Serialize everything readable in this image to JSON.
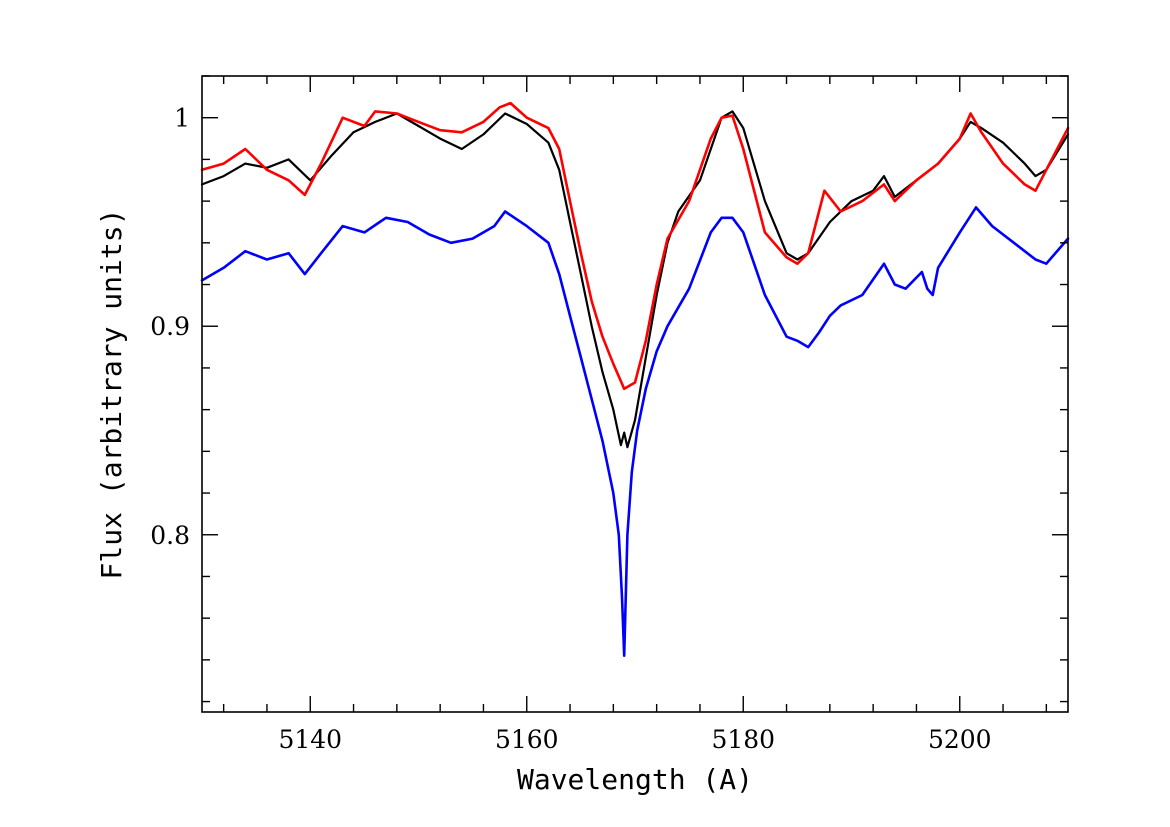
{
  "chart_data": {
    "type": "line",
    "title": "",
    "xlabel": "Wavelength (A)",
    "ylabel": "Flux (arbitrary units)",
    "xlim": [
      5130,
      5210
    ],
    "ylim": [
      0.715,
      1.02
    ],
    "grid": false,
    "legend": "none",
    "x_ticks": [
      5140,
      5160,
      5180,
      5200
    ],
    "x_tick_labels": [
      "5140",
      "5160",
      "5180",
      "5200"
    ],
    "y_ticks": [
      0.8,
      0.9,
      1.0
    ],
    "y_tick_labels": [
      "0.8",
      "0.9",
      "1"
    ],
    "x_minor_step": 4,
    "y_minor_step": 0.02,
    "series": [
      {
        "color": "#000000",
        "x": [
          5130,
          5132,
          5134,
          5136,
          5138,
          5140,
          5142,
          5144,
          5146,
          5148,
          5150,
          5152,
          5154,
          5156,
          5158,
          5160,
          5162,
          5163,
          5164,
          5165,
          5166,
          5167,
          5168,
          5168.7,
          5169,
          5169.3,
          5170,
          5171,
          5172,
          5173,
          5174,
          5176,
          5178,
          5179,
          5180,
          5182,
          5184,
          5185,
          5186,
          5188,
          5190,
          5192,
          5193,
          5194,
          5196,
          5198,
          5200,
          5201,
          5202,
          5204,
          5206,
          5207,
          5208,
          5210
        ],
        "y": [
          0.968,
          0.972,
          0.978,
          0.976,
          0.98,
          0.97,
          0.982,
          0.993,
          0.998,
          1.002,
          0.996,
          0.99,
          0.985,
          0.992,
          1.002,
          0.997,
          0.988,
          0.975,
          0.95,
          0.925,
          0.9,
          0.878,
          0.86,
          0.843,
          0.849,
          0.842,
          0.855,
          0.885,
          0.915,
          0.94,
          0.955,
          0.97,
          1.0,
          1.003,
          0.995,
          0.96,
          0.935,
          0.932,
          0.935,
          0.95,
          0.96,
          0.965,
          0.972,
          0.962,
          0.97,
          0.978,
          0.99,
          0.998,
          0.995,
          0.988,
          0.978,
          0.972,
          0.975,
          0.992
        ]
      },
      {
        "color": "#ff0000",
        "x": [
          5130,
          5132,
          5134,
          5136,
          5138,
          5139.5,
          5141,
          5143,
          5145,
          5146,
          5148,
          5150,
          5152,
          5154,
          5156,
          5157.5,
          5158.5,
          5160,
          5162,
          5163,
          5164,
          5165,
          5166,
          5167,
          5168,
          5169,
          5170,
          5171,
          5172,
          5173,
          5175,
          5177,
          5178,
          5179,
          5180,
          5182,
          5184,
          5185,
          5186,
          5187,
          5187.5,
          5189,
          5191,
          5193,
          5194,
          5196,
          5198,
          5200,
          5201,
          5202,
          5204,
          5206,
          5207,
          5208,
          5210
        ],
        "y": [
          0.975,
          0.978,
          0.985,
          0.975,
          0.97,
          0.963,
          0.978,
          1.0,
          0.996,
          1.003,
          1.002,
          0.998,
          0.994,
          0.993,
          0.998,
          1.005,
          1.007,
          1.0,
          0.995,
          0.985,
          0.96,
          0.935,
          0.912,
          0.895,
          0.882,
          0.87,
          0.873,
          0.893,
          0.92,
          0.942,
          0.96,
          0.99,
          1.0,
          1.001,
          0.985,
          0.945,
          0.933,
          0.93,
          0.935,
          0.955,
          0.965,
          0.955,
          0.96,
          0.968,
          0.96,
          0.97,
          0.978,
          0.99,
          1.002,
          0.993,
          0.978,
          0.968,
          0.965,
          0.975,
          0.995
        ]
      },
      {
        "color": "#0000ff",
        "x": [
          5130,
          5132,
          5134,
          5136,
          5138,
          5139.5,
          5141,
          5143,
          5145,
          5147,
          5149,
          5151,
          5153,
          5155,
          5157,
          5158,
          5160,
          5162,
          5163,
          5164,
          5165,
          5166,
          5167,
          5168,
          5168.5,
          5168.8,
          5169,
          5169.3,
          5169.7,
          5170.2,
          5171,
          5172,
          5173,
          5175,
          5177,
          5178,
          5179,
          5180,
          5182,
          5184,
          5185,
          5186,
          5187,
          5188,
          5189,
          5191,
          5193,
          5194,
          5195,
          5196.5,
          5197,
          5197.5,
          5198,
          5200,
          5201.5,
          5203,
          5205,
          5207,
          5208,
          5210
        ],
        "y": [
          0.922,
          0.928,
          0.936,
          0.932,
          0.935,
          0.925,
          0.935,
          0.948,
          0.945,
          0.952,
          0.95,
          0.944,
          0.94,
          0.942,
          0.948,
          0.955,
          0.948,
          0.94,
          0.925,
          0.905,
          0.885,
          0.865,
          0.845,
          0.82,
          0.8,
          0.77,
          0.742,
          0.8,
          0.83,
          0.85,
          0.87,
          0.888,
          0.9,
          0.918,
          0.945,
          0.952,
          0.952,
          0.945,
          0.915,
          0.895,
          0.893,
          0.89,
          0.897,
          0.905,
          0.91,
          0.915,
          0.93,
          0.92,
          0.918,
          0.926,
          0.918,
          0.915,
          0.928,
          0.945,
          0.957,
          0.948,
          0.94,
          0.932,
          0.93,
          0.942
        ]
      }
    ]
  }
}
